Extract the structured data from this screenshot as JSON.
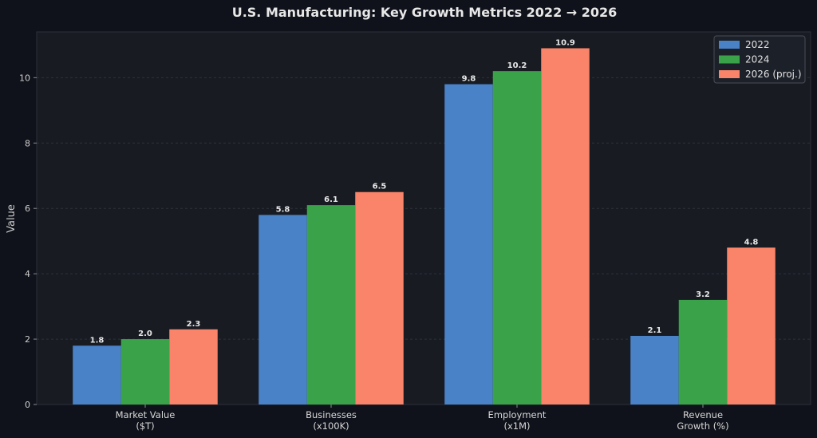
{
  "colors": {
    "background": "#0f121a",
    "plot_background": "#181b22",
    "series_2022": "#4a82c8",
    "series_2024": "#3aa34a",
    "series_2026": "#f98469"
  },
  "chart_data": {
    "type": "bar",
    "title": "U.S. Manufacturing: Key Growth Metrics  2022 → 2026",
    "xlabel": "",
    "ylabel": "Value",
    "ylim": [
      0,
      11.4
    ],
    "yticks": [
      0,
      2,
      4,
      6,
      8,
      10
    ],
    "grid": true,
    "legend_position": "top-right",
    "categories": [
      [
        "Market Value",
        "($T)"
      ],
      [
        "Businesses",
        "(x100K)"
      ],
      [
        "Employment",
        "(x1M)"
      ],
      [
        "Revenue",
        "Growth (%)"
      ]
    ],
    "series": [
      {
        "name": "2022",
        "color": "#4a82c8",
        "values": [
          1.8,
          5.8,
          9.8,
          2.1
        ]
      },
      {
        "name": "2024",
        "color": "#3aa34a",
        "values": [
          2.0,
          6.1,
          10.2,
          3.2
        ]
      },
      {
        "name": "2026 (proj.)",
        "color": "#f98469",
        "values": [
          2.3,
          6.5,
          10.9,
          4.8
        ]
      }
    ]
  }
}
